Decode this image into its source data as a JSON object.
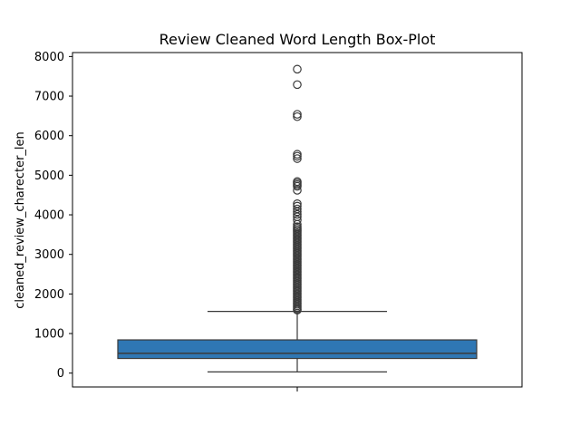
{
  "chart_data": {
    "type": "box",
    "title": "Review Cleaned Word Length Box-Plot",
    "xlabel": "",
    "ylabel": "cleaned_review_charecter_len",
    "ylim": [
      -350,
      8100
    ],
    "yticks": [
      0,
      1000,
      2000,
      3000,
      4000,
      5000,
      6000,
      7000,
      8000
    ],
    "grid": false,
    "legend": "none",
    "colors": {
      "box_fill": "#2f77b4",
      "line": "#3a3a3a",
      "outlier": "#3a3a3a"
    },
    "box": {
      "whisker_low": 30,
      "q1": 370,
      "median": 500,
      "q3": 840,
      "whisker_high": 1560,
      "outliers": [
        7680,
        7290,
        6540,
        6480,
        5530,
        5480,
        5420,
        4840,
        4800,
        4760,
        4720,
        4620,
        4280,
        4220,
        4150,
        4080,
        4010,
        3950,
        3870,
        3760,
        3700,
        3660,
        3620,
        3580,
        3540,
        3500,
        3460,
        3420,
        3380,
        3340,
        3300,
        3260,
        3220,
        3180,
        3140,
        3100,
        3060,
        3020,
        2980,
        2940,
        2900,
        2860,
        2820,
        2780,
        2740,
        2700,
        2660,
        2620,
        2580,
        2540,
        2500,
        2460,
        2420,
        2380,
        2340,
        2300,
        2260,
        2220,
        2180,
        2140,
        2100,
        2060,
        2020,
        1980,
        1940,
        1900,
        1860,
        1820,
        1780,
        1740,
        1700,
        1660,
        1620,
        1590
      ]
    }
  }
}
